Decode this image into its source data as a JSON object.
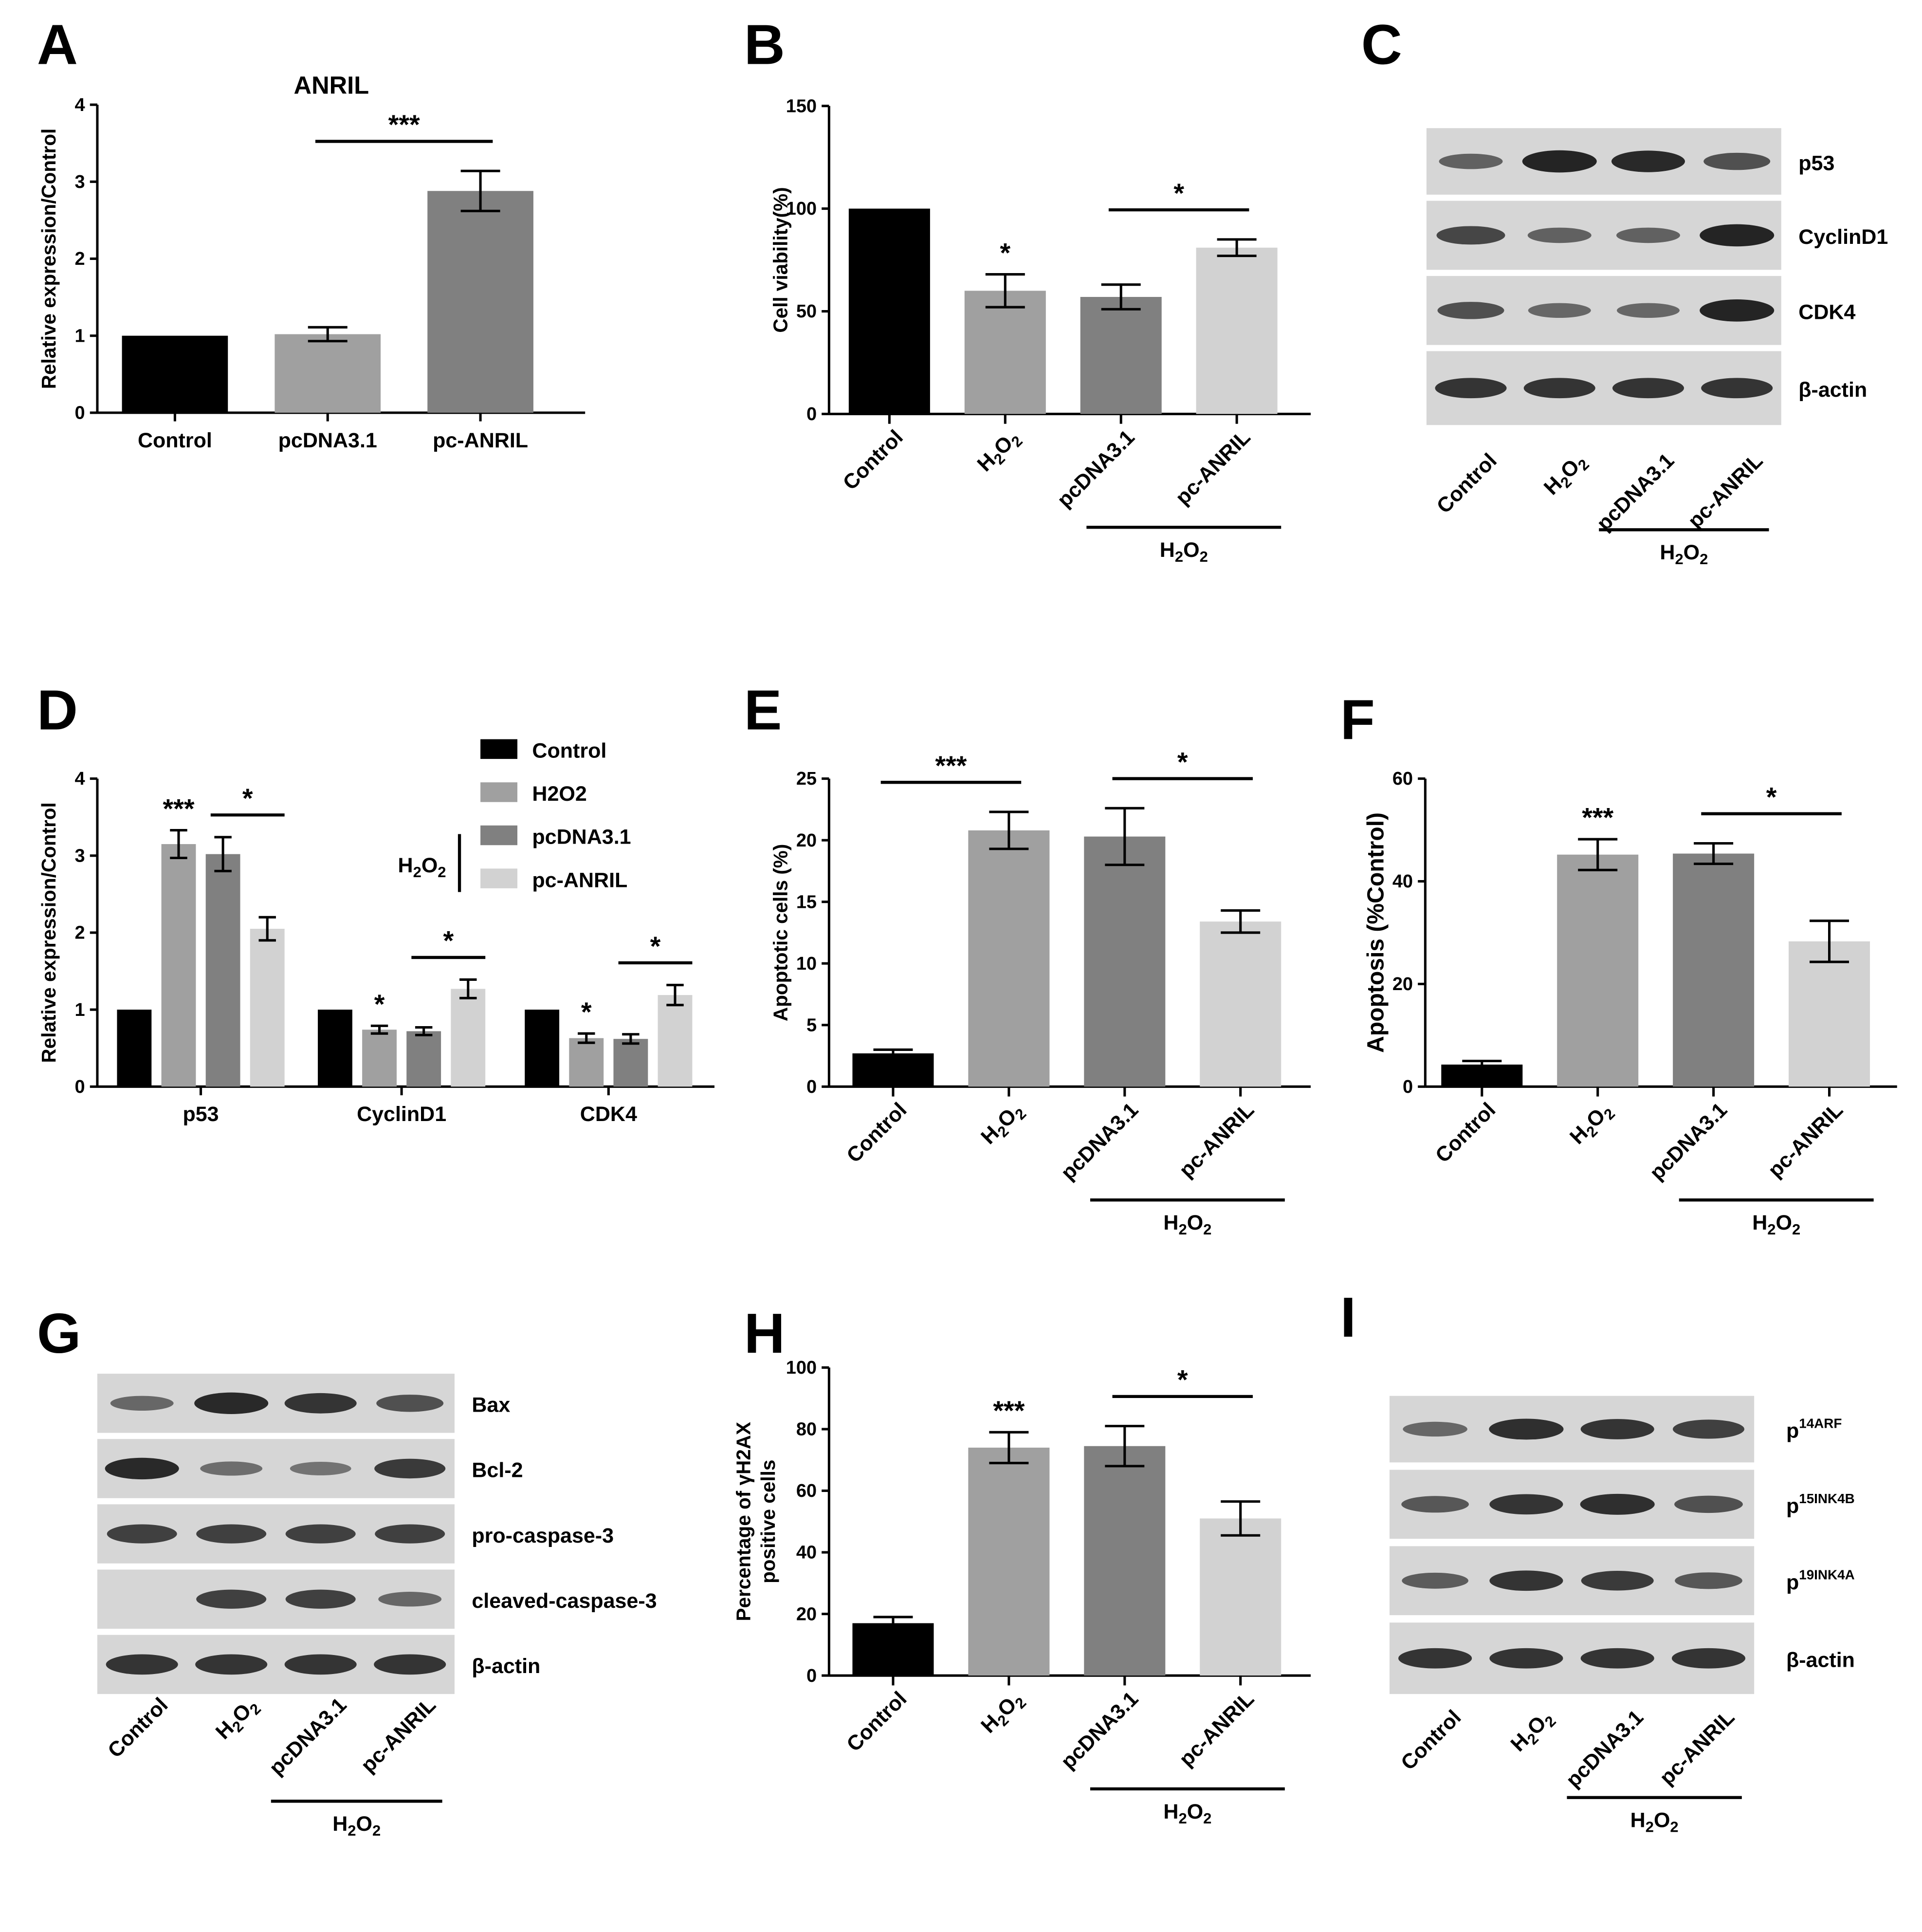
{
  "colors": {
    "control": "#000000",
    "h2o2": "#a0a0a0",
    "pcdna": "#808080",
    "pcanril": "#d2d2d2",
    "blot_bg": "#d6d6d6",
    "band": "#1a1a1a"
  },
  "chart_data": [
    {
      "panel": "A",
      "type": "bar",
      "title": "ANRIL",
      "xlabel": "",
      "ylabel": "Relative expression/Control",
      "ylim": [
        0,
        4
      ],
      "yticks": [
        "0",
        "1",
        "2",
        "3",
        "4"
      ],
      "categories": [
        "Control",
        "pcDNA3.1",
        "pc-ANRIL"
      ],
      "values": [
        1.0,
        1.02,
        2.88
      ],
      "errors": [
        0,
        0.09,
        0.26
      ],
      "colors": [
        "control",
        "h2o2",
        "pcdna"
      ],
      "significance": [
        {
          "label": "***",
          "from": 1,
          "to": 2
        }
      ],
      "bar_marks": [],
      "group_label": null
    },
    {
      "panel": "B",
      "type": "bar",
      "title": "",
      "xlabel": "",
      "ylabel": "Cell viability(%)",
      "ylim": [
        0,
        150
      ],
      "yticks": [
        "0",
        "50",
        "100",
        "150"
      ],
      "categories": [
        "Control",
        "H2O2",
        "pcDNA3.1",
        "pc-ANRIL"
      ],
      "values": [
        100,
        60,
        57,
        81
      ],
      "errors": [
        0,
        8,
        6,
        4
      ],
      "colors": [
        "control",
        "h2o2",
        "pcdna",
        "pcanril"
      ],
      "significance": [
        {
          "label": "*",
          "from": 2,
          "to": 3
        }
      ],
      "bar_marks": [
        {
          "label": "*",
          "index": 1
        }
      ],
      "group_label": {
        "label": "H2O2",
        "from": 2,
        "to": 3
      }
    },
    {
      "panel": "D",
      "type": "bar",
      "title": "",
      "xlabel": "",
      "ylabel": "Relative expression/Control",
      "ylim": [
        0,
        4
      ],
      "yticks": [
        "0",
        "1",
        "2",
        "3",
        "4"
      ],
      "categories": [
        "p53",
        "CyclinD1",
        "CDK4"
      ],
      "series": [
        {
          "name": "Control",
          "values": [
            1.0,
            1.0,
            1.0
          ],
          "errors": [
            0,
            0,
            0
          ],
          "color": "control"
        },
        {
          "name": "H2O2",
          "values": [
            3.15,
            0.74,
            0.63
          ],
          "errors": [
            0.18,
            0.05,
            0.06
          ],
          "color": "h2o2"
        },
        {
          "name": "pcDNA3.1",
          "values": [
            3.02,
            0.72,
            0.62
          ],
          "errors": [
            0.22,
            0.05,
            0.06
          ],
          "color": "pcdna"
        },
        {
          "name": "pc-ANRIL",
          "values": [
            2.05,
            1.27,
            1.19
          ],
          "errors": [
            0.15,
            0.12,
            0.13
          ],
          "color": "pcanril"
        }
      ],
      "significance": [
        {
          "label": "***",
          "category": 0,
          "series": 1
        },
        {
          "label": "*",
          "category": 0,
          "from": 2,
          "to": 3
        },
        {
          "label": "*",
          "category": 1,
          "series": 1
        },
        {
          "label": "*",
          "category": 1,
          "from": 2,
          "to": 3
        },
        {
          "label": "*",
          "category": 2,
          "series": 1
        },
        {
          "label": "*",
          "category": 2,
          "from": 2,
          "to": 3
        }
      ],
      "legend": {
        "position": "top-right",
        "bracket_label": "H2O2"
      }
    },
    {
      "panel": "E",
      "type": "bar",
      "title": "",
      "xlabel": "",
      "ylabel": "Apoptotic cells (%)",
      "ylim": [
        0,
        25
      ],
      "yticks": [
        "0",
        "5",
        "10",
        "15",
        "20",
        "25"
      ],
      "categories": [
        "Control",
        "H2O2",
        "pcDNA3.1",
        "pc-ANRIL"
      ],
      "values": [
        2.7,
        20.8,
        20.3,
        13.4
      ],
      "errors": [
        0.3,
        1.5,
        2.3,
        0.9
      ],
      "colors": [
        "control",
        "h2o2",
        "pcdna",
        "pcanril"
      ],
      "significance": [
        {
          "label": "***",
          "from": 0,
          "to": 1
        },
        {
          "label": "*",
          "from": 2,
          "to": 3
        }
      ],
      "bar_marks": [],
      "group_label": {
        "label": "H2O2",
        "from": 2,
        "to": 3
      }
    },
    {
      "panel": "F",
      "type": "bar",
      "title": "",
      "xlabel": "",
      "ylabel": "Apoptosis (%Control)",
      "ylim": [
        0,
        60
      ],
      "yticks": [
        "0",
        "20",
        "40",
        "60"
      ],
      "categories": [
        "Control",
        "H2O2",
        "pcDNA3.1",
        "pc-ANRIL"
      ],
      "values": [
        4.3,
        45.2,
        45.4,
        28.3
      ],
      "errors": [
        0.7,
        3,
        2,
        4
      ],
      "colors": [
        "control",
        "h2o2",
        "pcdna",
        "pcanril"
      ],
      "significance": [
        {
          "label": "*",
          "from": 2,
          "to": 3
        }
      ],
      "bar_marks": [
        {
          "label": "***",
          "index": 1
        }
      ],
      "group_label": {
        "label": "H2O2",
        "from": 2,
        "to": 3
      }
    },
    {
      "panel": "H",
      "type": "bar",
      "title": "",
      "xlabel": "",
      "ylabel": "Percentage of γH2AX positive cells",
      "ylabel_lines": [
        "Percentage of γH2AX",
        "positive cells"
      ],
      "ylim": [
        0,
        100
      ],
      "yticks": [
        "0",
        "20",
        "40",
        "60",
        "80",
        "100"
      ],
      "categories": [
        "Control",
        "H2O2",
        "pcDNA3.1",
        "pc-ANRIL"
      ],
      "values": [
        17,
        74,
        74.5,
        51
      ],
      "errors": [
        2,
        5,
        6.5,
        5.5
      ],
      "colors": [
        "control",
        "h2o2",
        "pcdna",
        "pcanril"
      ],
      "significance": [
        {
          "label": "*",
          "from": 2,
          "to": 3
        }
      ],
      "bar_marks": [
        {
          "label": "***",
          "index": 1
        }
      ],
      "group_label": {
        "label": "H2O2",
        "from": 2,
        "to": 3
      }
    }
  ],
  "blots": [
    {
      "panel": "C",
      "rows": [
        {
          "label": "p53",
          "intensity": [
            0.45,
            1.0,
            0.95,
            0.6
          ]
        },
        {
          "label": "CyclinD1",
          "intensity": [
            0.7,
            0.45,
            0.45,
            1.0
          ]
        },
        {
          "label": "CDK4",
          "intensity": [
            0.6,
            0.4,
            0.4,
            1.0
          ]
        },
        {
          "label": "β-actin",
          "intensity": [
            0.85,
            0.85,
            0.85,
            0.85
          ]
        }
      ],
      "lanes": [
        "Control",
        "H2O2",
        "pcDNA3.1",
        "pc-ANRIL"
      ],
      "group_label": "H2O2"
    },
    {
      "panel": "G",
      "rows": [
        {
          "label": "Bax",
          "intensity": [
            0.4,
            0.95,
            0.85,
            0.6
          ]
        },
        {
          "label": "Bcl-2",
          "intensity": [
            0.95,
            0.35,
            0.3,
            0.8
          ]
        },
        {
          "label": "pro-caspase-3",
          "intensity": [
            0.75,
            0.75,
            0.75,
            0.75
          ]
        },
        {
          "label": "cleaved-caspase-3",
          "intensity": [
            0.0,
            0.75,
            0.75,
            0.4
          ]
        },
        {
          "label": "β-actin",
          "intensity": [
            0.85,
            0.85,
            0.85,
            0.85
          ]
        }
      ],
      "lanes": [
        "Control",
        "H2O2",
        "pcDNA3.1",
        "pc-ANRIL"
      ],
      "group_label": "H2O2"
    },
    {
      "panel": "I",
      "rows": [
        {
          "label": "p",
          "sup": "14ARF",
          "intensity": [
            0.4,
            0.9,
            0.85,
            0.75
          ]
        },
        {
          "label": "p",
          "sup": "15INK4B",
          "intensity": [
            0.55,
            0.85,
            0.9,
            0.6
          ]
        },
        {
          "label": "p",
          "sup": "19INK4A",
          "intensity": [
            0.5,
            0.85,
            0.8,
            0.55
          ]
        },
        {
          "label": "β-actin",
          "intensity": [
            0.85,
            0.85,
            0.85,
            0.85
          ]
        }
      ],
      "lanes": [
        "Control",
        "H2O2",
        "pcDNA3.1",
        "pc-ANRIL"
      ],
      "group_label": "H2O2"
    }
  ],
  "panel_labels": [
    "A",
    "B",
    "C",
    "D",
    "E",
    "F",
    "G",
    "H",
    "I"
  ]
}
